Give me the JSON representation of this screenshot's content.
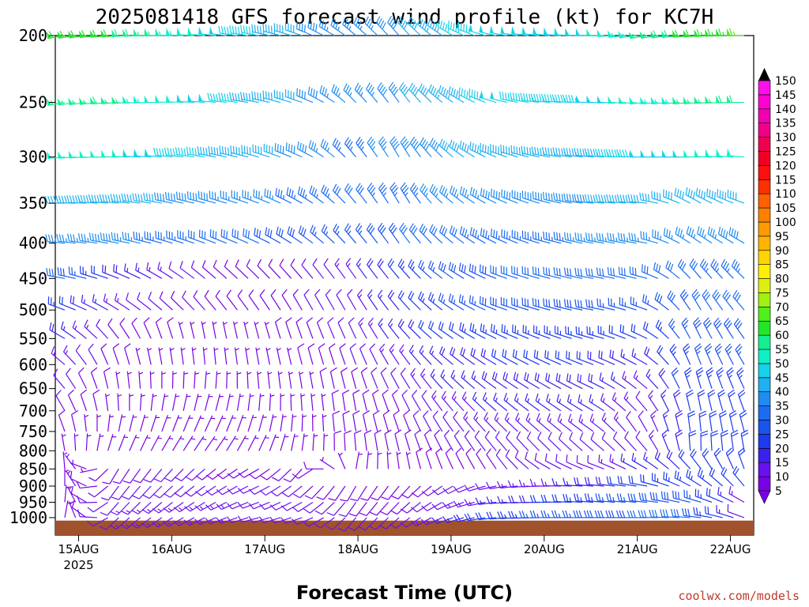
{
  "chart_data": {
    "type": "wind-barb-profile",
    "title": "2025081418 GFS forecast wind profile (kt) for KC7H",
    "xlabel": "Forecast Time (UTC)",
    "ylabel": "",
    "credit": "coolwx.com/models",
    "x_axis": {
      "start": "2025-08-14T18:00Z",
      "end": "2025-08-22T06:00Z",
      "ticks": [
        {
          "time": "2025-08-15T00:00Z",
          "label": "15AUG"
        },
        {
          "time": "2025-08-16T00:00Z",
          "label": "16AUG"
        },
        {
          "time": "2025-08-17T00:00Z",
          "label": "17AUG"
        },
        {
          "time": "2025-08-18T00:00Z",
          "label": "18AUG"
        },
        {
          "time": "2025-08-19T00:00Z",
          "label": "19AUG"
        },
        {
          "time": "2025-08-20T00:00Z",
          "label": "20AUG"
        },
        {
          "time": "2025-08-21T00:00Z",
          "label": "21AUG"
        },
        {
          "time": "2025-08-22T00:00Z",
          "label": "22AUG"
        }
      ],
      "year_label": "2025"
    },
    "y_axis": {
      "unit": "hPa",
      "scale": "log",
      "top": 200,
      "bottom": 1060,
      "ticks": [
        200,
        250,
        300,
        350,
        400,
        450,
        500,
        550,
        600,
        650,
        700,
        750,
        800,
        850,
        900,
        950,
        1000
      ]
    },
    "colorbar": {
      "unit": "kt",
      "labels": [
        5,
        10,
        15,
        20,
        25,
        30,
        35,
        40,
        45,
        50,
        55,
        60,
        65,
        70,
        75,
        80,
        85,
        90,
        95,
        100,
        105,
        110,
        115,
        120,
        125,
        130,
        135,
        140,
        145,
        150
      ],
      "colors": [
        "#7a00e6",
        "#6a10f0",
        "#3a22ee",
        "#1c3af0",
        "#1a54f0",
        "#1c6cf2",
        "#1e8cf0",
        "#1eb0f0",
        "#14d2e8",
        "#10f0c8",
        "#14f090",
        "#22e62a",
        "#50f018",
        "#a0f010",
        "#dcf010",
        "#fff000",
        "#ffd400",
        "#ffb400",
        "#ff9a00",
        "#ff8000",
        "#ff6000",
        "#ff3000",
        "#ff1010",
        "#f00020",
        "#f00050",
        "#f00088",
        "#f000b0",
        "#ff00d0",
        "#ff10e8",
        "#ff20f0"
      ]
    },
    "ground": {
      "color": "#a0522d",
      "top_hpa": 1010
    },
    "levels": [
      200,
      250,
      300,
      350,
      400,
      450,
      500,
      550,
      600,
      650,
      700,
      750,
      800,
      850,
      900,
      950,
      1000
    ],
    "level_profiles": [
      {
        "level": 200,
        "dir": [
          260,
          265,
          270,
          275,
          280,
          290,
          310,
          320,
          300,
          280,
          275,
          270,
          260,
          265,
          270
        ],
        "speed": [
          60,
          62,
          55,
          50,
          45,
          40,
          35,
          40,
          45,
          50,
          48,
          50,
          55,
          62,
          65
        ]
      },
      {
        "level": 250,
        "dir": [
          260,
          265,
          270,
          275,
          280,
          290,
          315,
          325,
          305,
          285,
          275,
          270,
          265,
          265,
          270
        ],
        "speed": [
          55,
          58,
          52,
          48,
          44,
          40,
          35,
          40,
          44,
          48,
          46,
          48,
          52,
          56,
          58
        ]
      },
      {
        "level": 300,
        "dir": [
          265,
          270,
          275,
          280,
          285,
          295,
          320,
          330,
          310,
          290,
          280,
          275,
          270,
          270,
          275
        ],
        "speed": [
          50,
          52,
          48,
          45,
          42,
          38,
          34,
          38,
          40,
          44,
          44,
          44,
          48,
          50,
          52
        ]
      },
      {
        "level": 350,
        "dir": [
          270,
          275,
          280,
          285,
          290,
          300,
          320,
          330,
          310,
          295,
          285,
          275,
          275,
          300,
          290
        ],
        "speed": [
          42,
          44,
          40,
          38,
          36,
          34,
          32,
          34,
          36,
          38,
          38,
          40,
          42,
          40,
          42
        ]
      },
      {
        "level": 400,
        "dir": [
          275,
          280,
          285,
          290,
          295,
          305,
          320,
          325,
          310,
          295,
          285,
          280,
          280,
          305,
          300
        ],
        "speed": [
          36,
          38,
          34,
          32,
          30,
          28,
          26,
          30,
          32,
          34,
          34,
          36,
          36,
          36,
          38
        ]
      },
      {
        "level": 450,
        "dir": [
          280,
          290,
          300,
          310,
          315,
          320,
          325,
          320,
          305,
          290,
          285,
          280,
          285,
          320,
          315
        ],
        "speed": [
          30,
          20,
          14,
          10,
          9,
          10,
          14,
          22,
          28,
          30,
          30,
          30,
          30,
          32,
          34
        ]
      },
      {
        "level": 500,
        "dir": [
          290,
          300,
          310,
          320,
          325,
          330,
          330,
          320,
          305,
          290,
          285,
          280,
          290,
          330,
          320
        ],
        "speed": [
          24,
          14,
          10,
          8,
          8,
          10,
          12,
          20,
          26,
          28,
          28,
          28,
          26,
          30,
          30
        ]
      },
      {
        "level": 550,
        "dir": [
          300,
          320,
          340,
          350,
          345,
          340,
          335,
          320,
          305,
          295,
          290,
          285,
          295,
          335,
          325
        ],
        "speed": [
          18,
          10,
          8,
          6,
          7,
          9,
          11,
          18,
          22,
          24,
          24,
          24,
          20,
          28,
          28
        ]
      },
      {
        "level": 600,
        "dir": [
          310,
          340,
          350,
          355,
          350,
          345,
          340,
          325,
          310,
          300,
          295,
          290,
          300,
          340,
          330
        ],
        "speed": [
          14,
          8,
          7,
          6,
          6,
          8,
          10,
          14,
          18,
          20,
          20,
          20,
          16,
          26,
          26
        ]
      },
      {
        "level": 650,
        "dir": [
          320,
          350,
          360,
          5,
          355,
          350,
          345,
          330,
          315,
          305,
          300,
          295,
          310,
          345,
          335
        ],
        "speed": [
          12,
          7,
          6,
          5,
          6,
          7,
          9,
          12,
          16,
          18,
          18,
          18,
          14,
          24,
          24
        ]
      },
      {
        "level": 700,
        "dir": [
          330,
          355,
          10,
          15,
          5,
          355,
          350,
          335,
          320,
          310,
          305,
          300,
          320,
          350,
          340
        ],
        "speed": [
          10,
          7,
          6,
          5,
          6,
          7,
          8,
          10,
          14,
          16,
          16,
          16,
          12,
          22,
          22
        ]
      },
      {
        "level": 750,
        "dir": [
          340,
          10,
          20,
          25,
          15,
          0,
          350,
          340,
          325,
          315,
          310,
          305,
          330,
          355,
          345
        ],
        "speed": [
          8,
          6,
          6,
          6,
          6,
          7,
          8,
          9,
          12,
          14,
          14,
          14,
          12,
          22,
          22
        ]
      },
      {
        "level": 800,
        "dir": [
          350,
          20,
          30,
          35,
          25,
          5,
          355,
          345,
          330,
          320,
          315,
          310,
          320,
          0,
          350
        ],
        "speed": [
          7,
          6,
          7,
          7,
          7,
          7,
          8,
          8,
          10,
          12,
          12,
          12,
          12,
          22,
          22
        ]
      },
      {
        "level": 850,
        "dir": [
          355,
          210,
          220,
          230,
          240,
          220,
          10,
          350,
          335,
          325,
          300,
          290,
          300,
          320,
          340
        ],
        "speed": [
          6,
          8,
          10,
          10,
          9,
          8,
          7,
          7,
          9,
          10,
          10,
          12,
          16,
          22,
          20
        ]
      },
      {
        "level": 900,
        "dir": [
          0,
          215,
          225,
          235,
          245,
          230,
          210,
          220,
          240,
          260,
          270,
          275,
          280,
          300,
          320
        ],
        "speed": [
          6,
          10,
          12,
          12,
          11,
          10,
          9,
          8,
          10,
          12,
          14,
          18,
          22,
          24,
          20
        ]
      },
      {
        "level": 950,
        "dir": [
          5,
          220,
          230,
          240,
          250,
          240,
          215,
          225,
          245,
          265,
          270,
          275,
          275,
          285,
          300
        ],
        "speed": [
          6,
          12,
          14,
          14,
          12,
          11,
          10,
          9,
          12,
          16,
          20,
          24,
          28,
          28,
          14
        ]
      },
      {
        "level": 1000,
        "dir": [
          10,
          225,
          235,
          245,
          255,
          250,
          220,
          230,
          250,
          265,
          270,
          270,
          270,
          275,
          290
        ],
        "speed": [
          6,
          12,
          14,
          14,
          12,
          12,
          10,
          10,
          16,
          22,
          26,
          28,
          30,
          30,
          12
        ]
      }
    ]
  }
}
